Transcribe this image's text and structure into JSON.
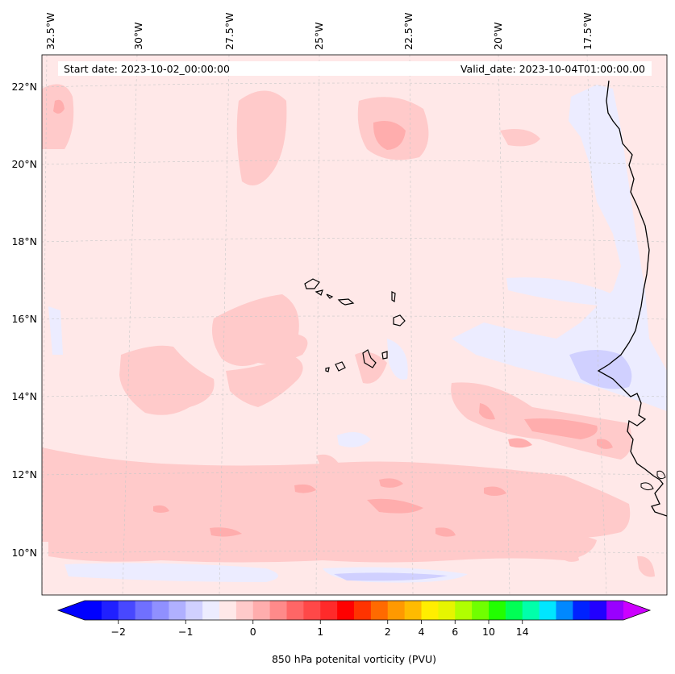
{
  "map": {
    "lon_labels": [
      "32.5°W",
      "30°W",
      "27.5°W",
      "25°W",
      "22.5°W",
      "20°W",
      "17.5°W"
    ],
    "lat_labels": [
      "22°N",
      "20°N",
      "18°N",
      "16°N",
      "14°N",
      "12°N",
      "10°N"
    ],
    "start_date": "Start date: 2023-10-02_00:00:00",
    "valid_date": "Valid_date: 2023-10-04T01:00:00.00",
    "background_color": "#ffe8e8"
  },
  "colorbar": {
    "label": "850 hPa potenital vorticity (PVU)",
    "tick_labels": [
      "−2",
      "−1",
      "0",
      "1",
      "2",
      "4",
      "6",
      "10",
      "14"
    ],
    "colors": [
      "#0000ff",
      "#2020ff",
      "#4848ff",
      "#7070ff",
      "#9090ff",
      "#b0b0ff",
      "#d0d0ff",
      "#ececff",
      "#ffe8e8",
      "#ffcaca",
      "#ffadad",
      "#ff8a8a",
      "#ff6666",
      "#ff4848",
      "#ff2a2a",
      "#ff0000",
      "#ff3300",
      "#ff6a00",
      "#ff9900",
      "#ffbb00",
      "#ffee00",
      "#e6f500",
      "#b0ff00",
      "#70ff00",
      "#22ff00",
      "#00ff55",
      "#00ffaa",
      "#00e6ff",
      "#0088ff",
      "#0022ff",
      "#2200ff",
      "#9900ff"
    ],
    "under_color": "#0000ff",
    "over_color": "#cc00ff"
  }
}
